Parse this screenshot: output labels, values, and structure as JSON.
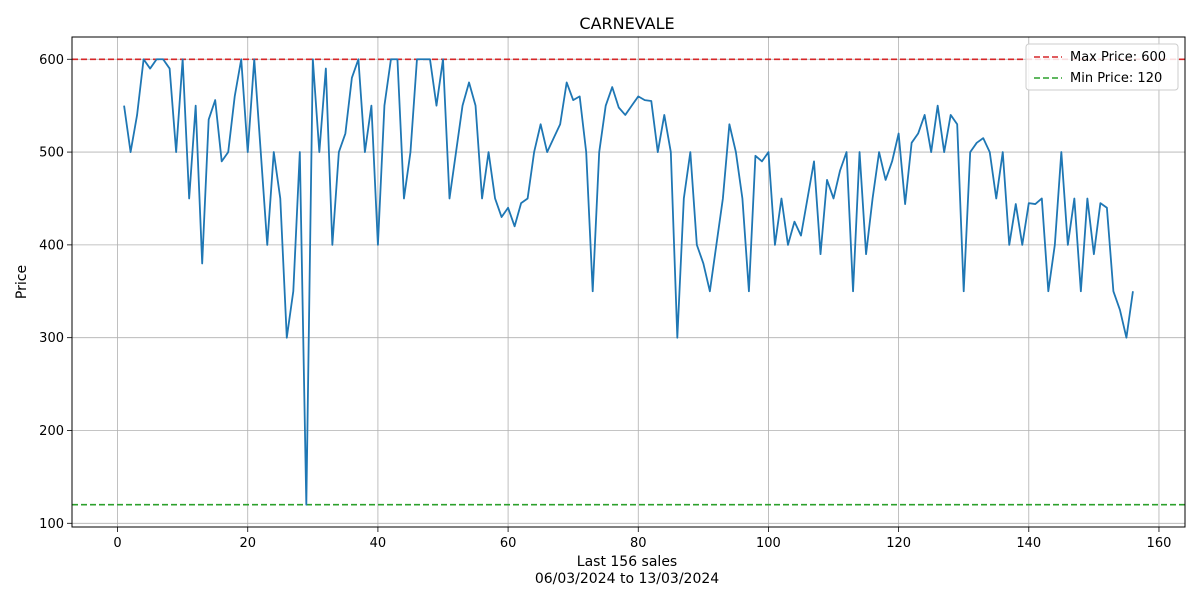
{
  "chart_data": {
    "type": "line",
    "title": "CARNEVALE",
    "xlabel": "Last 156 sales",
    "xlabel_sub": "06/03/2024 to 13/03/2024",
    "ylabel": "Price",
    "xlim": [
      -7,
      164
    ],
    "ylim": [
      96,
      624
    ],
    "x_ticks": [
      0,
      20,
      40,
      60,
      80,
      100,
      120,
      140,
      160
    ],
    "y_ticks": [
      100,
      200,
      300,
      400,
      500,
      600
    ],
    "grid": true,
    "legend_position": "top-right",
    "series_color": "#1f77b4",
    "series": [
      {
        "name": "",
        "x": [
          1,
          2,
          3,
          4,
          5,
          6,
          7,
          8,
          9,
          10,
          11,
          12,
          13,
          14,
          15,
          16,
          17,
          18,
          19,
          20,
          21,
          22,
          23,
          24,
          25,
          26,
          27,
          28,
          29,
          30,
          31,
          32,
          33,
          34,
          35,
          36,
          37,
          38,
          39,
          40,
          41,
          42,
          43,
          44,
          45,
          46,
          47,
          48,
          49,
          50,
          51,
          52,
          53,
          54,
          55,
          56,
          57,
          58,
          59,
          60,
          61,
          62,
          63,
          64,
          65,
          66,
          67,
          68,
          69,
          70,
          71,
          72,
          73,
          74,
          75,
          76,
          77,
          78,
          79,
          80,
          81,
          82,
          83,
          84,
          85,
          86,
          87,
          88,
          89,
          90,
          91,
          92,
          93,
          94,
          95,
          96,
          97,
          98,
          99,
          100,
          101,
          102,
          103,
          104,
          105,
          106,
          107,
          108,
          109,
          110,
          111,
          112,
          113,
          114,
          115,
          116,
          117,
          118,
          119,
          120,
          121,
          122,
          123,
          124,
          125,
          126,
          127,
          128,
          129,
          130,
          131,
          132,
          133,
          134,
          135,
          136,
          137,
          138,
          139,
          140,
          141,
          142,
          143,
          144,
          145,
          146,
          147,
          148,
          149,
          150,
          151,
          152,
          153,
          154,
          155,
          156
        ],
        "values": [
          550,
          500,
          540,
          600,
          590,
          600,
          600,
          590,
          500,
          600,
          450,
          550,
          380,
          535,
          556,
          490,
          500,
          560,
          600,
          500,
          600,
          500,
          400,
          500,
          450,
          300,
          350,
          500,
          120,
          600,
          500,
          590,
          400,
          500,
          520,
          580,
          600,
          500,
          550,
          400,
          550,
          600,
          600,
          450,
          500,
          600,
          600,
          600,
          550,
          600,
          450,
          500,
          550,
          575,
          550,
          450,
          500,
          450,
          430,
          440,
          420,
          445,
          450,
          500,
          530,
          500,
          515,
          530,
          575,
          556,
          560,
          500,
          350,
          500,
          550,
          570,
          548,
          540,
          550,
          560,
          556,
          555,
          500,
          540,
          500,
          300,
          450,
          500,
          400,
          380,
          350,
          400,
          450,
          530,
          500,
          450,
          350,
          496,
          490,
          500,
          400,
          450,
          400,
          425,
          410,
          450,
          490,
          390,
          470,
          450,
          480,
          500,
          350,
          500,
          390,
          450,
          500,
          470,
          490,
          520,
          444,
          510,
          520,
          540,
          500,
          550,
          500,
          540,
          530,
          350,
          500,
          510,
          515,
          500,
          450,
          500,
          400,
          444,
          400,
          445,
          444,
          450,
          350,
          400,
          500,
          400,
          450,
          350,
          450,
          390,
          445,
          440,
          350,
          330,
          300,
          350
        ]
      }
    ],
    "reference_lines": [
      {
        "label": "Max Price: 600",
        "value": 600,
        "color": "#d62728"
      },
      {
        "label": "Min Price: 120",
        "value": 120,
        "color": "#2ca02c"
      }
    ]
  }
}
